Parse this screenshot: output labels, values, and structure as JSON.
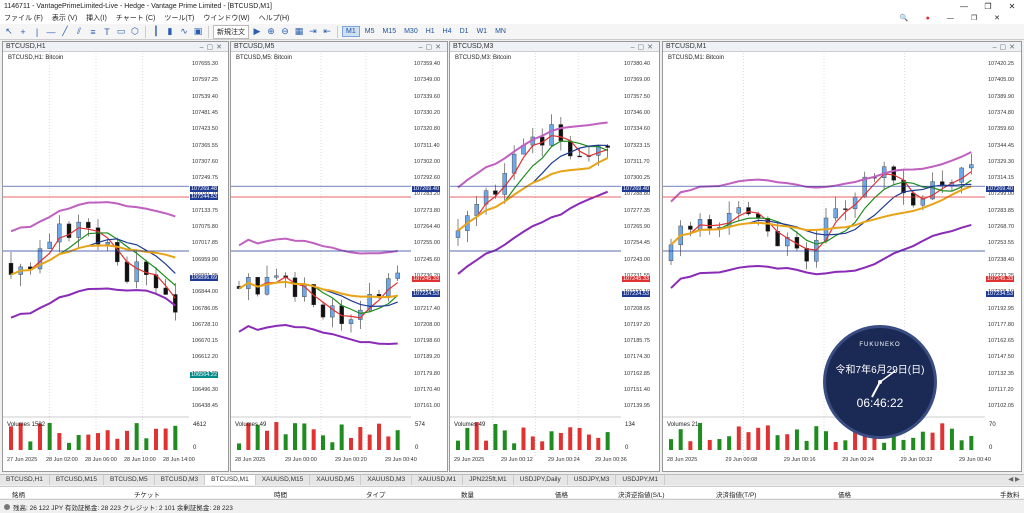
{
  "window": {
    "title": "1146711 - VantagePrimeLimited-Live - Hedge - Vantage Prime Limited - [BTCUSD,M1]",
    "minimize": "—",
    "maximize": "❐",
    "close": "✕"
  },
  "menu": {
    "items": [
      "ファイル (F)",
      "表示 (V)",
      "挿入(I)",
      "チャート (C)",
      "ツール(T)",
      "ウインドウ(W)",
      "ヘルプ(H)"
    ]
  },
  "toolbar": {
    "new_order": "新規注文",
    "timeframes": [
      "M1",
      "M5",
      "M15",
      "M30",
      "H1",
      "H4",
      "D1",
      "W1",
      "MN"
    ],
    "active_timeframe": "M1"
  },
  "charts": [
    {
      "window_title": "BTCUSD,H1",
      "label": "BTCUSD,H1: Bitcoin",
      "prices": [
        "107655.30",
        "107597.25",
        "107539.40",
        "107481.45",
        "107423.50",
        "107365.55",
        "107307.60",
        "107249.75",
        "107191.70",
        "107133.75",
        "107075.80",
        "107017.85",
        "106959.90",
        "106901.95",
        "106844.00",
        "106786.05",
        "106728.10",
        "106670.15",
        "106612.20",
        "106554.25",
        "106496.30",
        "106438.45"
      ],
      "tags": [
        {
          "text": "107269.48",
          "color": "blue"
        },
        {
          "text": "107244.53",
          "color": "blue"
        },
        {
          "text": "106896.69",
          "color": "blue"
        },
        {
          "text": "106564.22",
          "color": "teal"
        }
      ],
      "volume_label": "Volumes 1582",
      "volume_max": "4612",
      "volume_min": "0",
      "times": [
        "27 Jun 2025",
        "28 Jun 02:00",
        "28 Jun 06:00",
        "28 Jun 10:00",
        "28 Jun 14:00"
      ]
    },
    {
      "window_title": "BTCUSD,M5",
      "label": "BTCUSD,M5: Bitcoin",
      "prices": [
        "107359.40",
        "107349.00",
        "107339.60",
        "107330.20",
        "107320.80",
        "107311.40",
        "107302.00",
        "107292.60",
        "107283.20",
        "107273.80",
        "107264.40",
        "107255.00",
        "107245.60",
        "107236.20",
        "107226.80",
        "107217.40",
        "107208.00",
        "107198.60",
        "107189.20",
        "107179.80",
        "107170.40",
        "107161.00"
      ],
      "tags": [
        {
          "text": "107269.40",
          "color": "blue"
        },
        {
          "text": "107245.33",
          "color": "red"
        },
        {
          "text": "107224.53",
          "color": "blue"
        }
      ],
      "volume_label": "Volumes 49",
      "volume_max": "574",
      "volume_min": "0",
      "times": [
        "28 Jun 2025",
        "29 Jun 00:00",
        "29 Jun 00:20",
        "29 Jun 00:40"
      ]
    },
    {
      "window_title": "BTCUSD,M3",
      "label": "BTCUSD,M3: Bitcoin",
      "prices": [
        "107380.40",
        "107369.00",
        "107357.50",
        "107346.00",
        "107334.60",
        "107323.15",
        "107311.70",
        "107300.25",
        "107288.80",
        "107277.35",
        "107265.90",
        "107254.45",
        "107243.00",
        "107231.55",
        "107220.10",
        "107208.65",
        "107197.20",
        "107185.75",
        "107174.30",
        "107162.85",
        "107151.40",
        "107139.95"
      ],
      "tags": [
        {
          "text": "107269.40",
          "color": "blue"
        },
        {
          "text": "107245.33",
          "color": "red"
        },
        {
          "text": "107224.53",
          "color": "blue"
        }
      ],
      "volume_label": "Volumes 49",
      "volume_max": "134",
      "volume_min": "0",
      "times": [
        "29 Jun 2025",
        "29 Jun 00:12",
        "29 Jun 00:24",
        "29 Jun 00:36"
      ]
    },
    {
      "window_title": "BTCUSD,M1",
      "label": "BTCUSD,M1: Bitcoin",
      "prices": [
        "107420.25",
        "107405.00",
        "107389.90",
        "107374.80",
        "107359.60",
        "107344.45",
        "107329.30",
        "107314.15",
        "107299.00",
        "107283.85",
        "107268.70",
        "107253.55",
        "107238.40",
        "107223.25",
        "107208.10",
        "107192.95",
        "107177.80",
        "107162.65",
        "107147.50",
        "107132.35",
        "107117.20",
        "107102.05"
      ],
      "tags": [
        {
          "text": "107269.40",
          "color": "blue"
        },
        {
          "text": "107245.33",
          "color": "red"
        },
        {
          "text": "107234.53",
          "color": "blue"
        }
      ],
      "volume_label": "Volumes 21",
      "volume_max": "70",
      "volume_min": "0",
      "times": [
        "28 Jun 2025",
        "29 Jun 00:08",
        "29 Jun 00:16",
        "29 Jun 00:24",
        "29 Jun 00:32",
        "29 Jun 00:40"
      ]
    }
  ],
  "clock": {
    "brand": "FUKUNEKO",
    "date": "令和7年6月29日(日)",
    "time": "06:46:22"
  },
  "tabs": [
    "BTCUSD,H1",
    "BTCUSD,M15",
    "BTCUSD,M5",
    "BTCUSD,M3",
    "BTCUSD,M1",
    "XAUUSD,M15",
    "XAUUSD,M5",
    "XAUUSD,M3",
    "XAUUSD,M1",
    "JPN225ft,M1",
    "USDJPY,Daily",
    "USDJPY,M3",
    "USDJPY,M1"
  ],
  "active_tab": "BTCUSD,M1",
  "terminal": {
    "columns": [
      "銘柄",
      "チケット",
      "時間",
      "タイプ",
      "数量",
      "価格",
      "決済逆指値(S/L)",
      "決済指値(T/P)",
      "価格",
      "手数料"
    ]
  },
  "status": {
    "text": "残高: 26 122 JPY  有効証拠金: 28 223  クレジット: 2 101  余剰証拠金: 28 223"
  }
}
